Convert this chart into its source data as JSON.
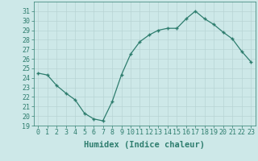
{
  "x": [
    0,
    1,
    2,
    3,
    4,
    5,
    6,
    7,
    8,
    9,
    10,
    11,
    12,
    13,
    14,
    15,
    16,
    17,
    18,
    19,
    20,
    21,
    22,
    23
  ],
  "y": [
    24.5,
    24.3,
    23.2,
    22.4,
    21.7,
    20.3,
    19.7,
    19.5,
    21.5,
    24.3,
    26.5,
    27.8,
    28.5,
    29.0,
    29.2,
    29.2,
    30.2,
    31.0,
    30.2,
    29.6,
    28.8,
    28.1,
    26.8,
    25.7
  ],
  "xlabel": "Humidex (Indice chaleur)",
  "ylim": [
    19,
    32
  ],
  "xlim": [
    -0.5,
    23.5
  ],
  "yticks": [
    19,
    20,
    21,
    22,
    23,
    24,
    25,
    26,
    27,
    28,
    29,
    30,
    31
  ],
  "xticks": [
    0,
    1,
    2,
    3,
    4,
    5,
    6,
    7,
    8,
    9,
    10,
    11,
    12,
    13,
    14,
    15,
    16,
    17,
    18,
    19,
    20,
    21,
    22,
    23
  ],
  "line_color": "#2e7d6e",
  "marker_color": "#2e7d6e",
  "bg_color": "#cde8e8",
  "grid_color": "#b8d4d4",
  "label_color": "#2e7d6e",
  "font_family": "monospace",
  "xlabel_fontsize": 7.5,
  "tick_fontsize": 6.0
}
